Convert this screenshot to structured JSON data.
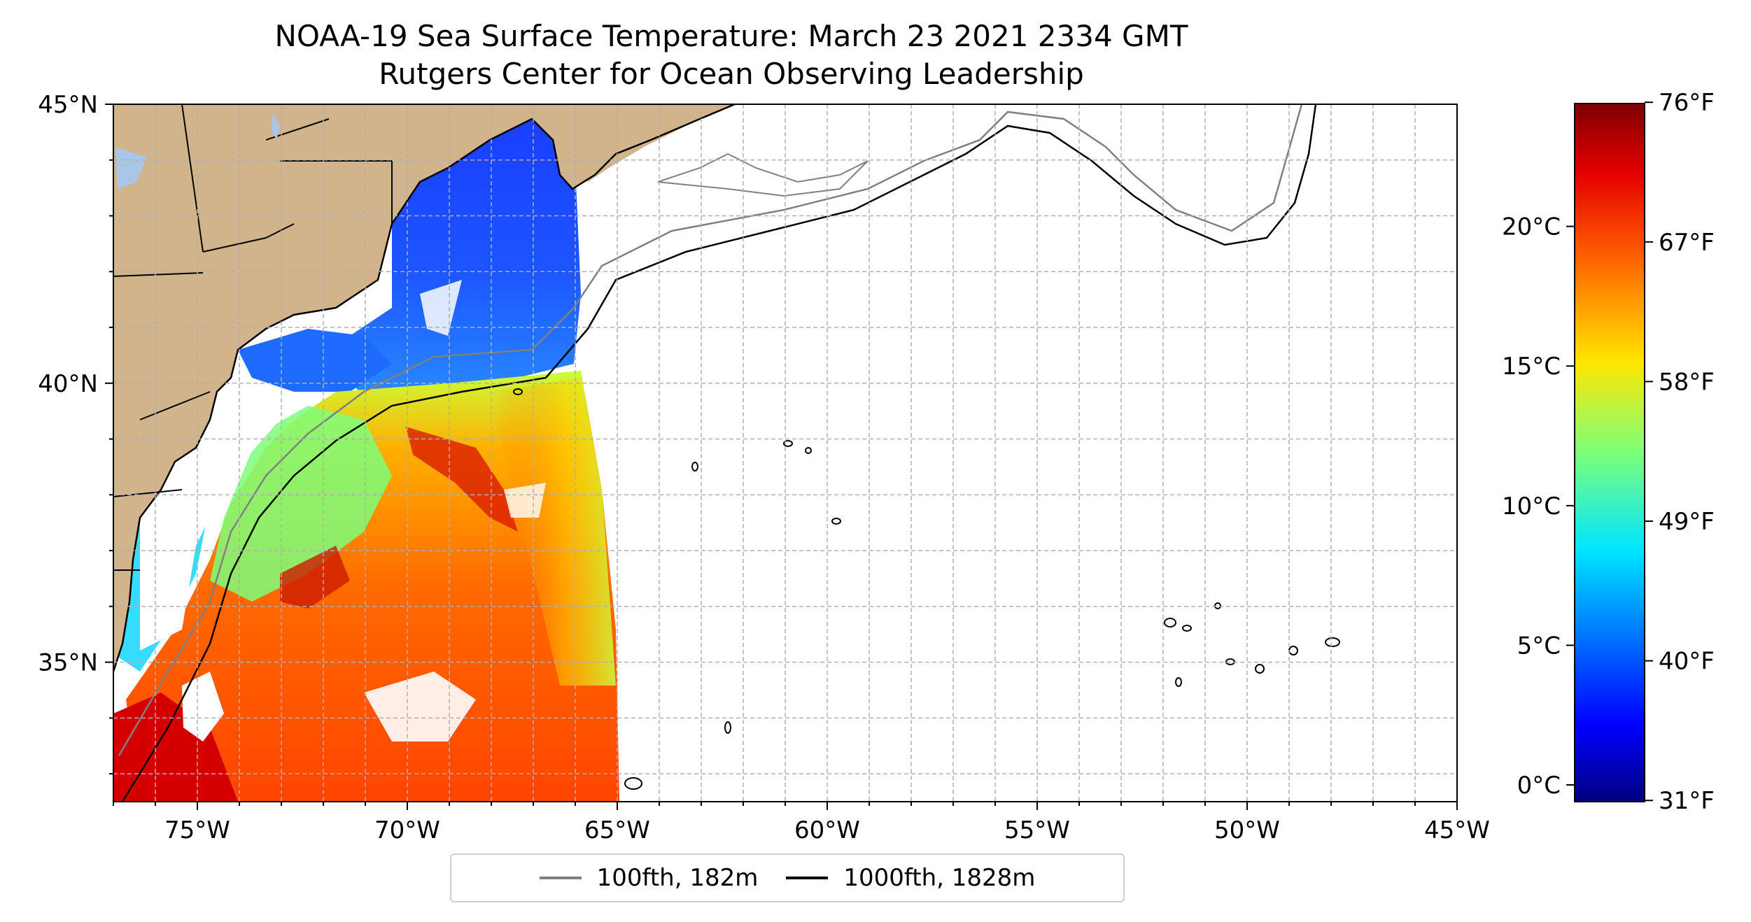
{
  "title": {
    "line1": "NOAA-19 Sea Surface Temperature: March 23 2021 2334 GMT",
    "line2": "Rutgers Center for Ocean Observing Leadership"
  },
  "map": {
    "lon_range": [
      -77,
      -45
    ],
    "lat_range": [
      32.5,
      45
    ],
    "x_ticks": [
      {
        "lon": -75,
        "label": "75°W"
      },
      {
        "lon": -70,
        "label": "70°W"
      },
      {
        "lon": -65,
        "label": "65°W"
      },
      {
        "lon": -60,
        "label": "60°W"
      },
      {
        "lon": -55,
        "label": "55°W"
      },
      {
        "lon": -50,
        "label": "50°W"
      },
      {
        "lon": -45,
        "label": "45°W"
      }
    ],
    "y_ticks": [
      {
        "lat": 45,
        "label": "45°N"
      },
      {
        "lat": 40,
        "label": "40°N"
      },
      {
        "lat": 35,
        "label": "35°N"
      }
    ],
    "grid": true,
    "grid_step_deg": 1,
    "colors": {
      "land": "#d2b48c",
      "lake": "#a9c6e8",
      "isobath_100fth": "#808080",
      "isobath_1000fth": "#000000"
    }
  },
  "legend": {
    "placement": "bottom-center",
    "items": [
      {
        "label": "100fth, 182m",
        "color": "#808080"
      },
      {
        "label": "1000fth, 1828m",
        "color": "#000000"
      }
    ]
  },
  "colorbar": {
    "colormap": "jet",
    "range_c": [
      -0.6,
      24.4
    ],
    "celsius_ticks": [
      {
        "value": 0,
        "label": "0°C"
      },
      {
        "value": 5,
        "label": "5°C"
      },
      {
        "value": 10,
        "label": "10°C"
      },
      {
        "value": 15,
        "label": "15°C"
      },
      {
        "value": 20,
        "label": "20°C"
      }
    ],
    "fahrenheit_ticks": [
      {
        "value": 31,
        "label": "31°F"
      },
      {
        "value": 40,
        "label": "40°F"
      },
      {
        "value": 49,
        "label": "49°F"
      },
      {
        "value": 58,
        "label": "58°F"
      },
      {
        "value": 67,
        "label": "67°F"
      },
      {
        "value": 76,
        "label": "76°F"
      }
    ]
  }
}
